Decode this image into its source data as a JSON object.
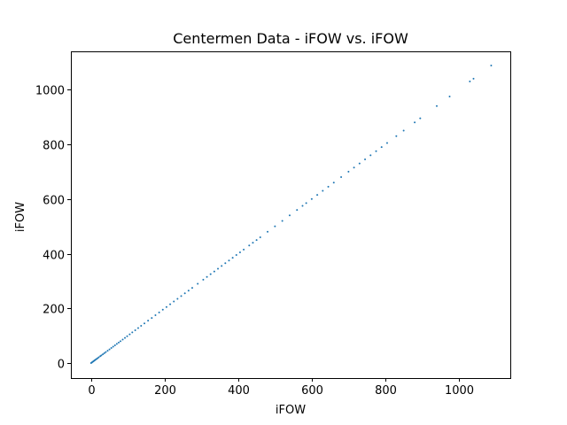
{
  "chart_data": {
    "type": "scatter",
    "title": "Centermen Data - iFOW vs. iFOW",
    "xlabel": "iFOW",
    "ylabel": "iFOW",
    "xlim": [
      -55,
      1140
    ],
    "ylim": [
      -55,
      1140
    ],
    "xticks": [
      0,
      200,
      400,
      600,
      800,
      1000
    ],
    "yticks": [
      0,
      200,
      400,
      600,
      800,
      1000
    ],
    "xtick_labels": [
      "0",
      "200",
      "400",
      "600",
      "800",
      "1000"
    ],
    "ytick_labels": [
      "0",
      "200",
      "400",
      "600",
      "800",
      "1000"
    ],
    "grid": false,
    "marker_color": "#1f77b4",
    "series": [
      {
        "x": [
          0,
          2,
          4,
          6,
          8,
          10,
          12,
          15,
          18,
          21,
          25,
          28,
          32,
          36,
          40,
          45,
          50,
          55,
          60,
          65,
          70,
          75,
          80,
          86,
          92,
          98,
          105,
          112,
          120,
          128,
          136,
          145,
          155,
          165,
          175,
          185,
          195,
          205,
          215,
          225,
          235,
          245,
          255,
          265,
          275,
          290,
          305,
          315,
          325,
          335,
          345,
          355,
          365,
          375,
          385,
          395,
          405,
          415,
          430,
          440,
          450,
          460,
          480,
          500,
          520,
          540,
          560,
          575,
          585,
          600,
          615,
          630,
          645,
          660,
          680,
          700,
          715,
          730,
          745,
          760,
          775,
          790,
          805,
          830,
          850,
          880,
          895,
          940,
          975,
          1030,
          1040,
          1088
        ],
        "y": [
          0,
          2,
          4,
          6,
          8,
          10,
          12,
          15,
          18,
          21,
          25,
          28,
          32,
          36,
          40,
          45,
          50,
          55,
          60,
          65,
          70,
          75,
          80,
          86,
          92,
          98,
          105,
          112,
          120,
          128,
          136,
          145,
          155,
          165,
          175,
          185,
          195,
          205,
          215,
          225,
          235,
          245,
          255,
          265,
          275,
          290,
          305,
          315,
          325,
          335,
          345,
          355,
          365,
          375,
          385,
          395,
          405,
          415,
          430,
          440,
          450,
          460,
          480,
          500,
          520,
          540,
          560,
          575,
          585,
          600,
          615,
          630,
          645,
          660,
          680,
          700,
          715,
          730,
          745,
          760,
          775,
          790,
          805,
          830,
          850,
          880,
          895,
          940,
          975,
          1030,
          1040,
          1088
        ]
      }
    ]
  }
}
